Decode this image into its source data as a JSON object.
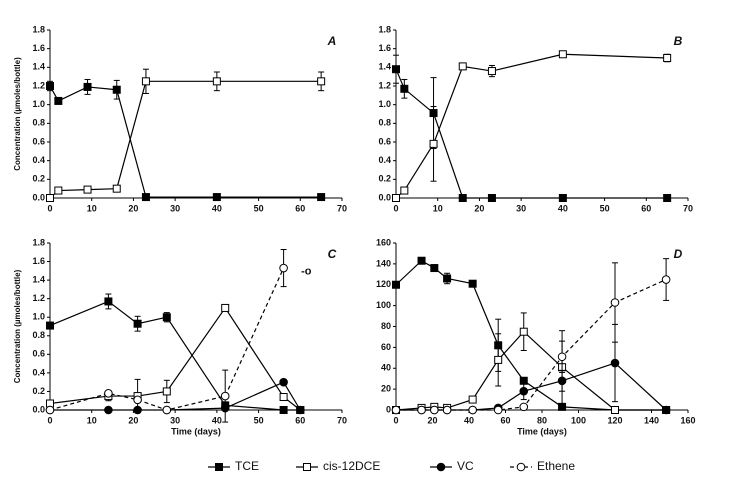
{
  "chart_data": [
    {
      "type": "line",
      "title": "A",
      "y_label": "Concentration (µmoles/bottle)",
      "x": [
        0,
        2,
        9,
        16,
        23,
        40,
        65
      ],
      "xlim": [
        0,
        70
      ],
      "xticks": [
        0,
        10,
        20,
        30,
        40,
        50,
        60,
        70
      ],
      "ylim": [
        0,
        1.8
      ],
      "yticks": [
        {
          "value": 0,
          "label": "0.0"
        },
        0.2,
        0.4,
        0.6,
        0.8,
        {
          "value": 1,
          "label": "1.0"
        },
        1.2,
        1.4,
        1.6,
        1.8
      ],
      "series": [
        {
          "name": "TCE",
          "color": "#000000",
          "marker": "square-filled",
          "dash": false,
          "values": [
            1.2,
            1.04,
            1.19,
            1.16,
            0.01,
            0.01,
            0.01
          ],
          "errors": [
            0.05,
            null,
            0.08,
            0.1,
            null,
            null,
            null
          ]
        },
        {
          "name": "cis-12DCE",
          "color": "#000000",
          "marker": "square-open",
          "dash": false,
          "values": [
            0,
            0.08,
            0.09,
            0.1,
            1.25,
            1.25,
            1.25
          ],
          "errors": [
            null,
            null,
            null,
            null,
            0.13,
            0.1,
            0.1
          ]
        }
      ]
    },
    {
      "type": "line",
      "title": "B",
      "x": [
        0,
        2,
        9,
        16,
        23,
        40,
        65
      ],
      "xlim": [
        0,
        70
      ],
      "xticks": [
        0,
        10,
        20,
        30,
        40,
        50,
        60,
        70
      ],
      "ylim": [
        0,
        1.8
      ],
      "yticks": [
        {
          "value": 0,
          "label": "0.0"
        },
        0.2,
        0.4,
        0.6,
        0.8,
        {
          "value": 1,
          "label": "1.0"
        },
        1.2,
        1.4,
        1.6,
        1.8
      ],
      "series": [
        {
          "name": "TCE",
          "color": "#000000",
          "marker": "square-filled",
          "dash": false,
          "values": [
            1.38,
            1.17,
            0.91,
            0,
            0,
            0,
            0
          ],
          "errors": [
            0.15,
            0.1,
            0.38,
            null,
            null,
            null,
            null
          ]
        },
        {
          "name": "cis-12DCE",
          "color": "#000000",
          "marker": "square-open",
          "dash": false,
          "values": [
            0,
            0.08,
            0.58,
            1.41,
            1.36,
            1.54,
            1.5
          ],
          "errors": [
            null,
            null,
            0.4,
            0.03,
            0.06,
            0.03,
            0.04
          ]
        }
      ]
    },
    {
      "type": "line",
      "title": "C",
      "y_label": "Concentration (µmoles/bottle)",
      "x_label": "Time (days)",
      "annotation": "-o",
      "x": [
        0,
        14,
        21,
        28,
        42,
        56,
        60
      ],
      "xlim": [
        0,
        70
      ],
      "xticks": [
        0,
        10,
        20,
        30,
        40,
        50,
        60,
        70
      ],
      "ylim": [
        0,
        1.8
      ],
      "yticks": [
        {
          "value": 0,
          "label": "0.0"
        },
        0.2,
        0.4,
        0.6,
        0.8,
        {
          "value": 1,
          "label": "1.0"
        },
        1.2,
        1.4,
        1.6,
        1.8
      ],
      "series": [
        {
          "name": "TCE",
          "color": "#000000",
          "marker": "square-filled",
          "dash": false,
          "values": [
            0.91,
            1.17,
            0.93,
            1.0,
            0.05,
            0,
            0
          ],
          "errors": [
            null,
            0.08,
            0.08,
            0.05,
            null,
            null,
            null
          ]
        },
        {
          "name": "cis-12DCE",
          "color": "#000000",
          "marker": "square-open",
          "dash": false,
          "values": [
            0.07,
            0.15,
            0.15,
            0.2,
            1.1,
            0.14,
            0
          ],
          "errors": [
            null,
            0.05,
            0.18,
            0.12,
            null,
            null,
            null
          ]
        },
        {
          "name": "VC",
          "color": "#000000",
          "marker": "circle-filled",
          "dash": false,
          "values": [
            0,
            0,
            0,
            0,
            0.02,
            0.3,
            0
          ],
          "errors": [
            null,
            null,
            null,
            null,
            null,
            null,
            null
          ]
        },
        {
          "name": "Ethene",
          "color": "#000000",
          "marker": "circle-open",
          "dash": true,
          "values": [
            0,
            0.18,
            0.11,
            0,
            0.15,
            1.53,
            null
          ],
          "errors": [
            null,
            null,
            null,
            null,
            0.28,
            0.2,
            null
          ]
        }
      ]
    },
    {
      "type": "line",
      "title": "D",
      "x_label": "Time (days)",
      "x": [
        0,
        14,
        21,
        28,
        42,
        56,
        70,
        91,
        120,
        148
      ],
      "xlim": [
        0,
        160
      ],
      "xticks": [
        0,
        20,
        40,
        60,
        80,
        100,
        120,
        140,
        160
      ],
      "ylim": [
        0,
        160
      ],
      "yticks": [
        0,
        20,
        40,
        60,
        80,
        100,
        120,
        140,
        160
      ],
      "series": [
        {
          "name": "TCE",
          "color": "#000000",
          "marker": "square-filled",
          "dash": false,
          "values": [
            120,
            143,
            136,
            126,
            121,
            62,
            28,
            3,
            0,
            0
          ],
          "errors": [
            null,
            3,
            3,
            5,
            null,
            25,
            null,
            null,
            null,
            null
          ]
        },
        {
          "name": "cis-12DCE",
          "color": "#000000",
          "marker": "square-open",
          "dash": false,
          "values": [
            0,
            2,
            3,
            2,
            10,
            48,
            75,
            41,
            0,
            0
          ],
          "errors": [
            null,
            null,
            null,
            null,
            null,
            25,
            18,
            35,
            null,
            null
          ]
        },
        {
          "name": "VC",
          "color": "#000000",
          "marker": "circle-filled",
          "dash": false,
          "values": [
            0,
            0,
            0,
            0,
            0,
            2,
            18,
            28,
            45,
            0
          ],
          "errors": [
            null,
            null,
            null,
            null,
            null,
            null,
            8,
            10,
            37,
            null
          ]
        },
        {
          "name": "Ethene",
          "color": "#000000",
          "marker": "circle-open",
          "dash": true,
          "values": [
            0,
            0,
            0,
            0,
            0,
            0,
            3,
            51,
            103,
            125
          ],
          "errors": [
            null,
            null,
            null,
            null,
            null,
            null,
            null,
            15,
            38,
            20
          ]
        }
      ]
    }
  ]
}
